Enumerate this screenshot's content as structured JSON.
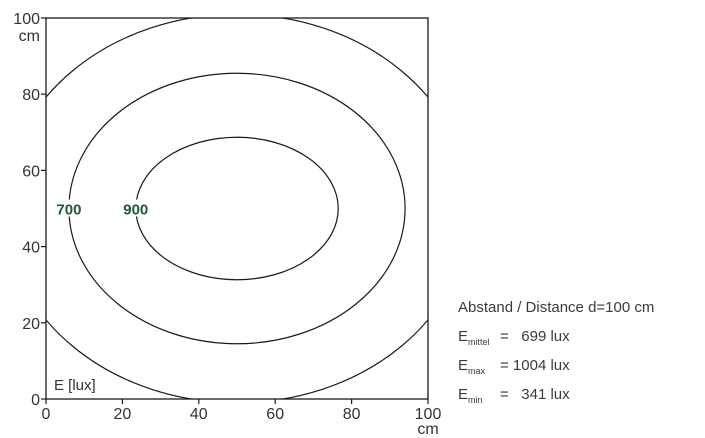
{
  "chart_data": {
    "type": "contour",
    "title": "",
    "xlabel": "",
    "ylabel": "",
    "x_unit": "cm",
    "y_unit": "cm",
    "xlim": [
      0,
      100
    ],
    "ylim": [
      0,
      100
    ],
    "x_ticks": [
      0,
      20,
      40,
      60,
      80,
      100
    ],
    "y_ticks": [
      0,
      20,
      40,
      60,
      80,
      100
    ],
    "x_tick_labels": [
      "0",
      "20",
      "40",
      "60",
      "80",
      "100"
    ],
    "y_tick_labels": [
      "0",
      "20",
      "40",
      "60",
      "80",
      "100"
    ],
    "grid": false,
    "corner_label": "E [lux]",
    "center": [
      50,
      50
    ],
    "contours": [
      {
        "rx": 26.5,
        "ry": 18.7,
        "label": "900",
        "label_color": "#1e5a32"
      },
      {
        "rx": 44,
        "ry": 35.5,
        "label": "700",
        "label_color": "#1e5a32"
      },
      {
        "rx": 61,
        "ry": 51,
        "label": ""
      }
    ]
  },
  "legend": {
    "distance": "Abstand / Distance d=100 cm",
    "rows": [
      {
        "symbol": "E",
        "sub": "mittel",
        "value": "=   699 lux"
      },
      {
        "symbol": "E",
        "sub": "max",
        "value": "= 1004 lux"
      },
      {
        "symbol": "E",
        "sub": "min",
        "value": "=   341 lux"
      }
    ]
  }
}
